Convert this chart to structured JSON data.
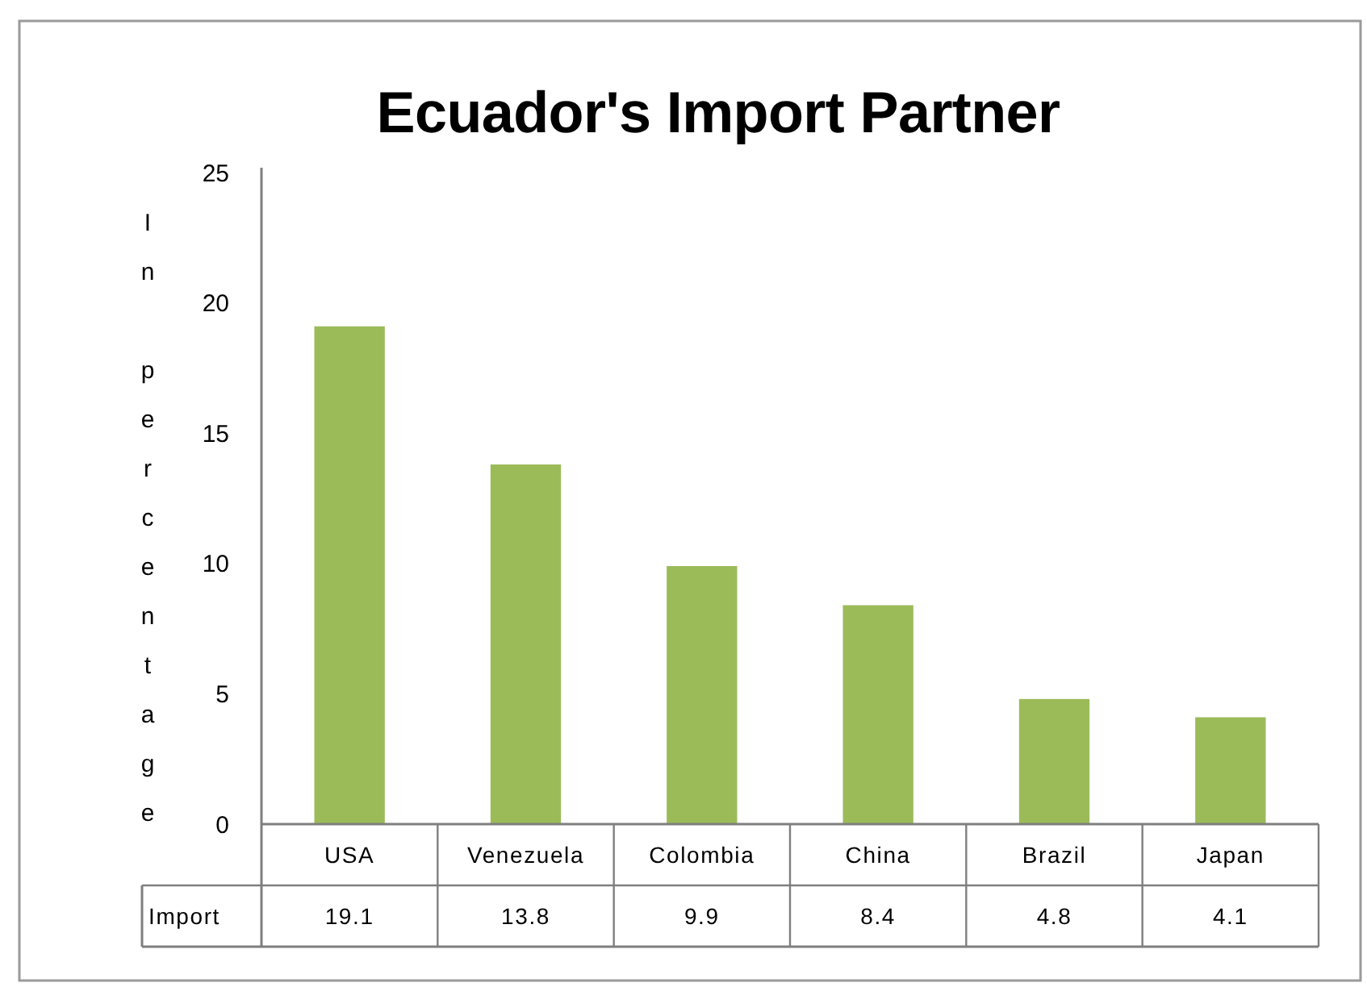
{
  "chart_data": {
    "type": "bar",
    "title": "Ecuador's Import Partner",
    "ylabel": "In percentage",
    "categories": [
      "USA",
      "Venezuela",
      "Colombia",
      "China",
      "Brazil",
      "Japan"
    ],
    "series": [
      {
        "name": "Import",
        "color": "#9bbb59",
        "values": [
          19.1,
          13.8,
          9.9,
          8.4,
          4.8,
          4.1
        ]
      }
    ],
    "ylim": [
      0,
      25
    ],
    "yticks": [
      0,
      5,
      10,
      15,
      20,
      25
    ],
    "data_labels": true
  }
}
